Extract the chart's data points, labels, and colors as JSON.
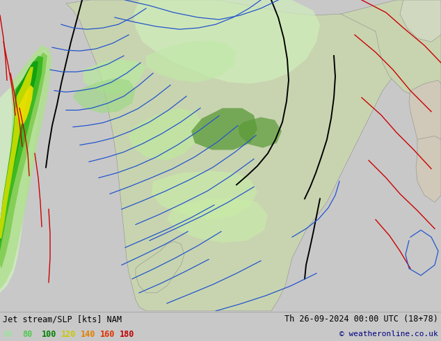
{
  "title_left": "Jet stream/SLP [kts] NAM",
  "title_right": "Th 26-09-2024 00:00 UTC (18+78)",
  "copyright": "© weatheronline.co.uk",
  "legend_values": [
    "60",
    "80",
    "100",
    "120",
    "140",
    "160",
    "180"
  ],
  "legend_colors": [
    "#a0e0a0",
    "#50c850",
    "#008000",
    "#c8c800",
    "#e08000",
    "#e03000",
    "#c00000"
  ],
  "bg_color": "#c8c8c8",
  "map_bg": "#c8c8c8",
  "ocean_color": "#c0c8d8",
  "land_color": "#d8d8c8",
  "figsize": [
    6.34,
    4.9
  ],
  "dpi": 100,
  "bottom_bar_color": "#c8c8c8",
  "bottom_bar_height": 0.088,
  "text_color": "#000000",
  "copyright_color": "#000080",
  "jet_light_green": "#c0e8a0",
  "jet_mid_green": "#70c840",
  "jet_dark_green": "#008000",
  "jet_yellow": "#e8e800",
  "red_isobar_color": "#cc0000",
  "blue_isobar_color": "#2255cc",
  "black_isobar_color": "#000000"
}
